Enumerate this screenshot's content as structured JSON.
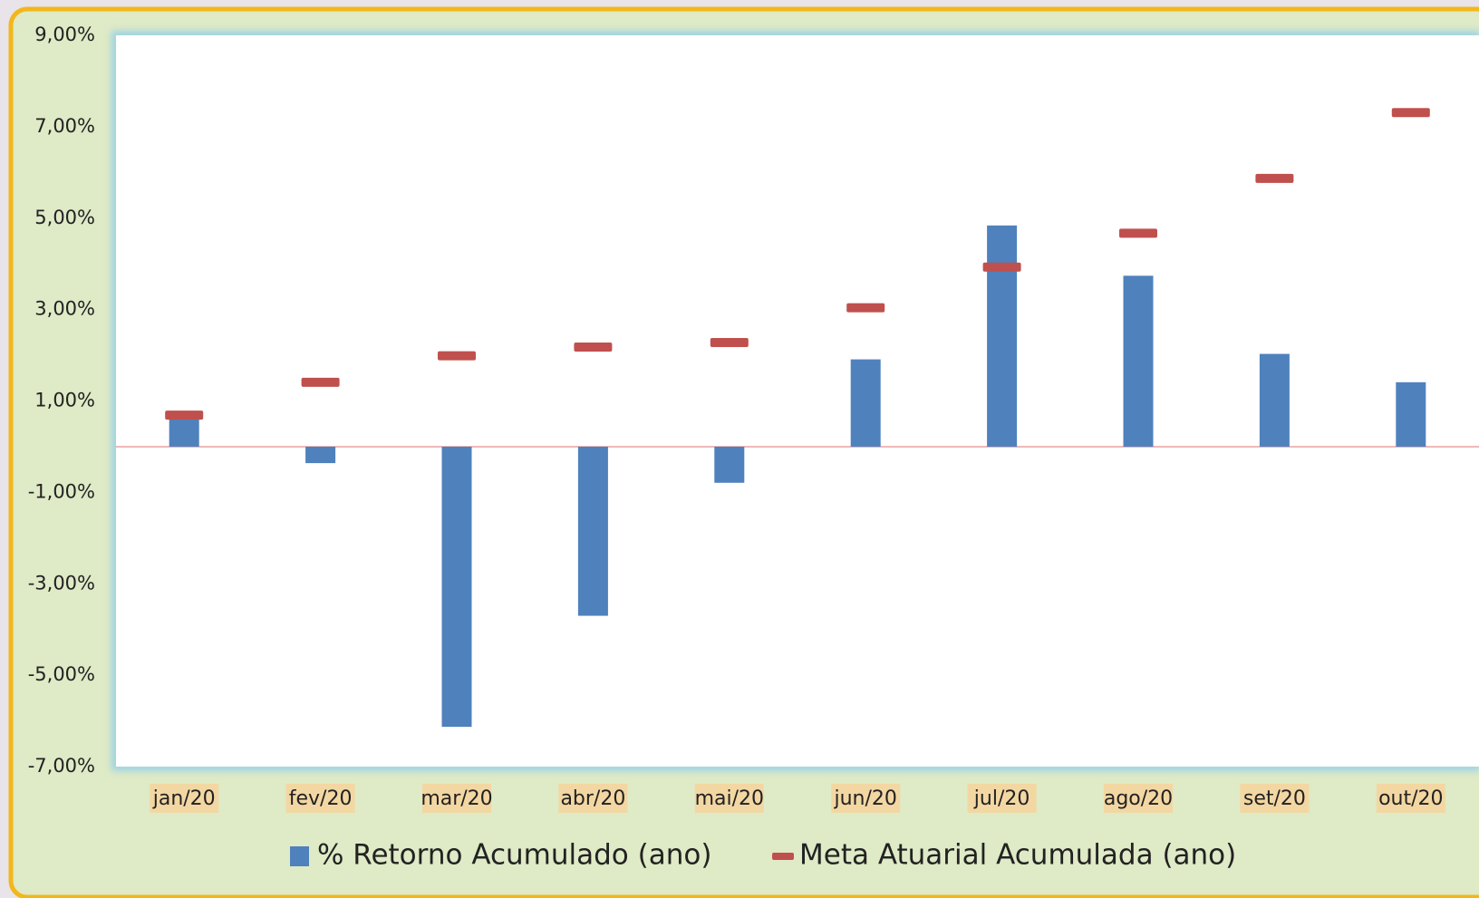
{
  "chart_data": {
    "type": "bar",
    "categories": [
      "jan/20",
      "fev/20",
      "mar/20",
      "abr/20",
      "mai/20",
      "jun/20",
      "jul/20",
      "ago/20",
      "set/20",
      "out/20"
    ],
    "series": [
      {
        "name": "% Retorno Acumulado (ano)",
        "type": "bar",
        "color": "#4f81bd",
        "values": [
          0.63,
          -0.36,
          -6.13,
          -3.7,
          -0.79,
          1.91,
          4.84,
          3.74,
          2.03,
          1.41
        ]
      },
      {
        "name": "Meta Atuarial Acumulada (ano)",
        "type": "dash",
        "color": "#c0504d",
        "values": [
          0.69,
          1.41,
          1.99,
          2.18,
          2.28,
          3.04,
          3.93,
          4.67,
          5.87,
          7.31
        ]
      }
    ],
    "ylim": [
      -7,
      9
    ],
    "yticks": [
      {
        "value": -7,
        "label": "-7,00%"
      },
      {
        "value": -5,
        "label": "-5,00%"
      },
      {
        "value": -3,
        "label": "-3,00%"
      },
      {
        "value": -1,
        "label": "-1,00%"
      },
      {
        "value": 1,
        "label": "1,00%"
      },
      {
        "value": 3,
        "label": "3,00%"
      },
      {
        "value": 5,
        "label": "5,00%"
      },
      {
        "value": 7,
        "label": "7,00%"
      },
      {
        "value": 9,
        "label": "9,00%"
      }
    ],
    "legend": "bottom"
  }
}
